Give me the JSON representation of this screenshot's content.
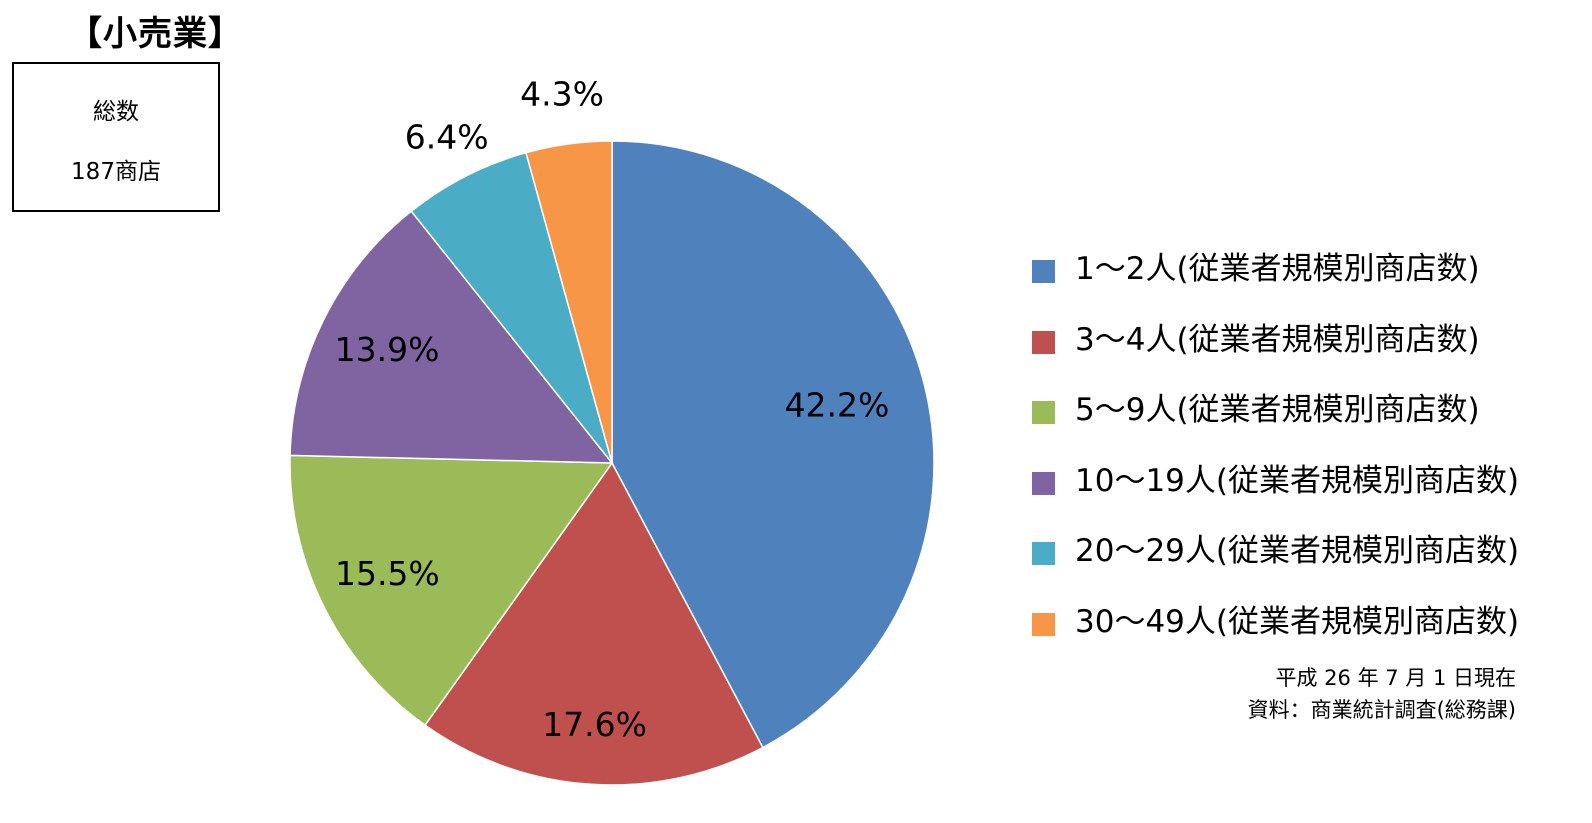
{
  "header": {
    "title": "【小売業】"
  },
  "total": {
    "label": "総数",
    "value": "187商店"
  },
  "chart_data": {
    "type": "pie",
    "title": "【小売業】",
    "start_angle": "12 o'clock",
    "direction": "clockwise",
    "slices": [
      {
        "label": "1～2人(従業者規模別商店数)",
        "value": 42.2,
        "display": "42.2%",
        "color": "#4F81BD"
      },
      {
        "label": "3～4人(従業者規模別商店数)",
        "value": 17.6,
        "display": "17.6%",
        "color": "#C0504D"
      },
      {
        "label": "5～9人(従業者規模別商店数)",
        "value": 15.5,
        "display": "15.5%",
        "color": "#9BBB59"
      },
      {
        "label": "10～19人(従業者規模別商店数)",
        "value": 13.9,
        "display": "13.9%",
        "color": "#8064A2"
      },
      {
        "label": "20～29人(従業者規模別商店数)",
        "value": 6.4,
        "display": "6.4%",
        "color": "#4BACC6"
      },
      {
        "label": "30～49人(従業者規模別商店数)",
        "value": 4.3,
        "display": "4.3%",
        "color": "#F79646"
      }
    ],
    "legend_position": "right"
  },
  "footer": {
    "date": "平成 26 年 7 月 1 日現在",
    "source": "資料：商業統計調査(総務課)"
  }
}
